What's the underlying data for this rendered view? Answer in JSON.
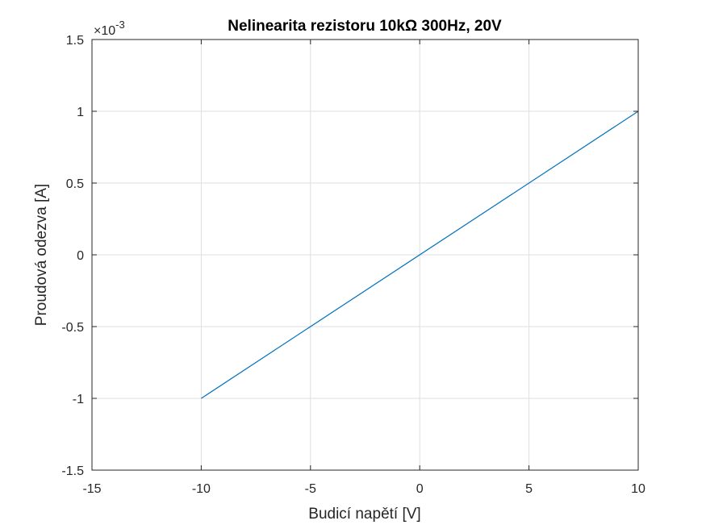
{
  "chart_data": {
    "type": "line",
    "title": "Nelinearita rezistoru 10kΩ 300Hz, 20V",
    "xlabel": "Budicí napětí [V]",
    "ylabel": "Proudová odezva [A]",
    "y_exponent_label": "×10",
    "y_exponent_power": "-3",
    "xlim": [
      -15,
      10
    ],
    "ylim": [
      -1.5,
      1.5
    ],
    "y_scale_factor": 0.001,
    "xticks": [
      "-15",
      "-10",
      "-5",
      "0",
      "5",
      "10"
    ],
    "yticks": [
      "-1.5",
      "-1",
      "-0.5",
      "0",
      "0.5",
      "1",
      "1.5"
    ],
    "grid": true,
    "series": [
      {
        "color": "#0072BD",
        "x": [
          -10,
          10
        ],
        "y": [
          -0.001,
          0.001
        ]
      }
    ]
  }
}
